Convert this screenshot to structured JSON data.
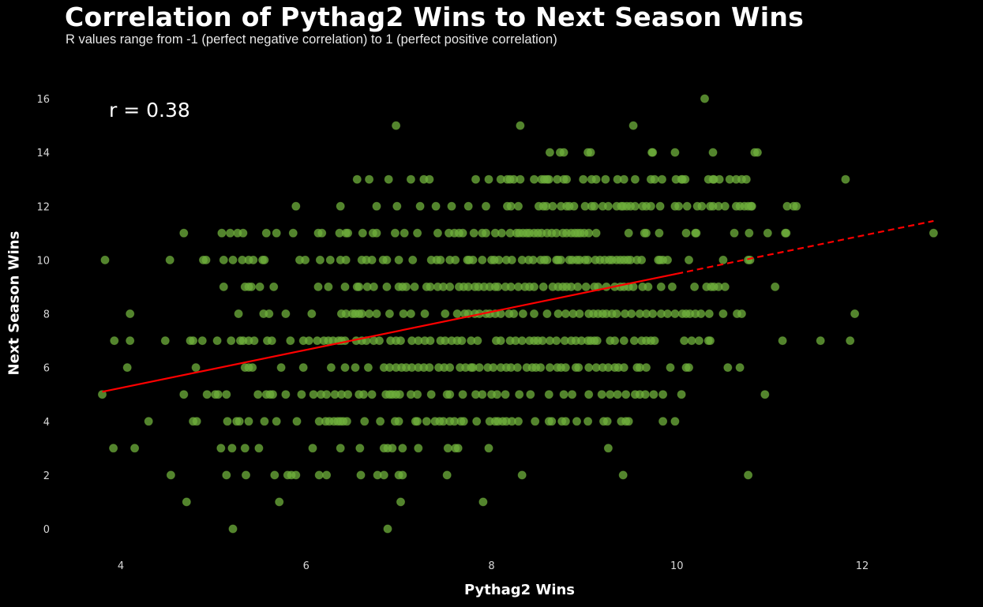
{
  "header": {
    "title": "Correlation of Pythag2 Wins to Next Season Wins",
    "subtitle": "R values range from -1 (perfect negative correlation) to 1 (perfect positive correlation)"
  },
  "colors": {
    "background": "#000000",
    "point": "#6fb03c",
    "point_opacity": 0.75,
    "regression_line": "#ff0000",
    "text": "#ffffff",
    "tick_text": "#d8d8d8"
  },
  "chart_data": {
    "type": "scatter",
    "title": "Correlation of Pythag2 Wins to Next Season Wins",
    "subtitle": "R values range from -1 (perfect negative correlation) to 1 (perfect positive correlation)",
    "xlabel": "Pythag2 Wins",
    "ylabel": "Next Season Wins",
    "annotation": "r = 0.38",
    "r": 0.38,
    "xlim": [
      3.45,
      13.0
    ],
    "ylim": [
      -0.9,
      16.7
    ],
    "xticks": [
      4,
      6,
      8,
      10,
      12
    ],
    "yticks": [
      0,
      2,
      4,
      6,
      8,
      10,
      12,
      14,
      16
    ],
    "grid": false,
    "legend": null,
    "regression": {
      "x_start": 3.8,
      "y_start": 5.1,
      "x_end": 12.77,
      "y_end": 11.45,
      "solid_until_x": 10.0,
      "style_after": "dashed"
    },
    "rows": [
      {
        "y": 16,
        "x": [
          10.3
        ]
      },
      {
        "y": 15,
        "x": [
          6.97,
          8.31,
          9.53
        ]
      },
      {
        "y": 14,
        "x": [
          8.63,
          8.74,
          8.78,
          9.04,
          9.07,
          9.73,
          9.74,
          9.98,
          10.39,
          10.84,
          10.87
        ]
      },
      {
        "y": 13,
        "x": [
          6.55,
          6.68,
          6.89,
          7.13,
          7.27,
          7.33,
          7.83,
          7.97,
          8.1,
          8.17,
          8.2,
          8.24,
          8.31,
          8.46,
          8.54,
          8.57,
          8.6,
          8.62,
          8.71,
          8.78,
          8.81,
          8.99,
          9.08,
          9.13,
          9.23,
          9.36,
          9.43,
          9.55,
          9.72,
          9.76,
          9.84,
          9.99,
          10.05,
          10.06,
          10.09,
          10.34,
          10.39,
          10.4,
          10.46,
          10.57,
          10.64,
          10.7,
          10.75,
          11.82
        ]
      },
      {
        "y": 12,
        "x": [
          5.89,
          6.37,
          6.76,
          6.98,
          7.23,
          7.4,
          7.57,
          7.75,
          7.94,
          8.17,
          8.21,
          8.29,
          8.51,
          8.56,
          8.59,
          8.66,
          8.75,
          8.81,
          8.84,
          8.89,
          9.01,
          9.08,
          9.11,
          9.2,
          9.26,
          9.35,
          9.4,
          9.42,
          9.46,
          9.5,
          9.55,
          9.63,
          9.67,
          9.72,
          9.82,
          9.98,
          10.02,
          10.11,
          10.22,
          10.27,
          10.36,
          10.39,
          10.45,
          10.52,
          10.64,
          10.68,
          10.73,
          10.77,
          10.8,
          10.81,
          11.19,
          11.26,
          11.29
        ]
      },
      {
        "y": 11,
        "x": [
          4.68,
          5.09,
          5.18,
          5.26,
          5.32,
          5.57,
          5.68,
          5.86,
          6.13,
          6.17,
          6.36,
          6.43,
          6.45,
          6.61,
          6.72,
          6.76,
          6.96,
          7.06,
          7.2,
          7.42,
          7.54,
          7.6,
          7.65,
          7.69,
          7.81,
          7.9,
          7.94,
          8.04,
          8.11,
          8.2,
          8.27,
          8.3,
          8.34,
          8.38,
          8.41,
          8.46,
          8.5,
          8.54,
          8.6,
          8.65,
          8.7,
          8.77,
          8.81,
          8.86,
          8.9,
          8.93,
          8.96,
          9.0,
          9.05,
          9.13,
          9.48,
          9.65,
          9.67,
          9.81,
          10.1,
          10.21,
          10.2,
          10.62,
          10.78,
          10.98,
          11.17,
          11.18,
          12.77
        ]
      },
      {
        "y": 10,
        "x": [
          3.83,
          4.53,
          4.89,
          4.92,
          5.11,
          5.21,
          5.31,
          5.38,
          5.43,
          5.53,
          5.55,
          5.93,
          5.99,
          6.15,
          6.26,
          6.37,
          6.43,
          6.6,
          6.65,
          6.71,
          6.83,
          6.87,
          7.0,
          7.15,
          7.35,
          7.41,
          7.45,
          7.55,
          7.61,
          7.74,
          7.76,
          7.8,
          7.9,
          8.0,
          8.03,
          8.08,
          8.16,
          8.22,
          8.33,
          8.4,
          8.45,
          8.53,
          8.57,
          8.6,
          8.7,
          8.72,
          8.75,
          8.84,
          8.87,
          8.92,
          8.95,
          9.01,
          9.04,
          9.12,
          9.17,
          9.22,
          9.27,
          9.3,
          9.35,
          9.39,
          9.43,
          9.47,
          9.5,
          9.57,
          9.62,
          9.8,
          9.82,
          9.85,
          9.9,
          10.13,
          10.5,
          10.77,
          10.79
        ]
      },
      {
        "y": 9,
        "x": [
          5.11,
          5.34,
          5.38,
          5.41,
          5.5,
          5.65,
          6.13,
          6.24,
          6.42,
          6.55,
          6.57,
          6.66,
          6.73,
          6.87,
          7.0,
          7.04,
          7.08,
          7.17,
          7.3,
          7.34,
          7.42,
          7.48,
          7.55,
          7.65,
          7.7,
          7.75,
          7.82,
          7.86,
          7.92,
          7.98,
          8.04,
          8.07,
          8.15,
          8.21,
          8.29,
          8.36,
          8.41,
          8.46,
          8.56,
          8.66,
          8.72,
          8.77,
          8.81,
          8.86,
          8.93,
          9.02,
          9.11,
          9.15,
          9.24,
          9.33,
          9.39,
          9.43,
          9.48,
          9.53,
          9.63,
          9.69,
          9.83,
          9.95,
          10.19,
          10.32,
          10.37,
          10.4,
          10.45,
          10.52,
          11.06
        ]
      },
      {
        "y": 8,
        "x": [
          4.1,
          5.27,
          5.54,
          5.6,
          5.78,
          6.06,
          6.38,
          6.43,
          6.5,
          6.53,
          6.57,
          6.6,
          6.68,
          6.76,
          6.9,
          7.05,
          7.13,
          7.28,
          7.5,
          7.63,
          7.71,
          7.75,
          7.82,
          7.87,
          7.94,
          7.98,
          8.04,
          8.1,
          8.19,
          8.24,
          8.34,
          8.46,
          8.6,
          8.72,
          8.8,
          8.88,
          8.95,
          9.05,
          9.1,
          9.15,
          9.2,
          9.24,
          9.3,
          9.35,
          9.44,
          9.51,
          9.6,
          9.67,
          9.74,
          9.83,
          9.9,
          9.98,
          10.06,
          10.1,
          10.14,
          10.2,
          10.26,
          10.35,
          10.5,
          10.65,
          10.7,
          11.92
        ]
      },
      {
        "y": 7,
        "x": [
          3.93,
          4.1,
          4.48,
          4.75,
          4.78,
          4.88,
          5.04,
          5.19,
          5.29,
          5.32,
          5.38,
          5.44,
          5.58,
          5.63,
          5.83,
          5.97,
          6.03,
          6.12,
          6.19,
          6.24,
          6.29,
          6.35,
          6.38,
          6.42,
          6.54,
          6.6,
          6.65,
          6.73,
          6.79,
          6.91,
          6.97,
          7.02,
          7.14,
          7.21,
          7.28,
          7.34,
          7.45,
          7.5,
          7.57,
          7.63,
          7.68,
          7.78,
          7.85,
          8.05,
          8.1,
          8.2,
          8.26,
          8.33,
          8.41,
          8.46,
          8.5,
          8.55,
          8.63,
          8.7,
          8.79,
          8.86,
          8.91,
          8.97,
          9.04,
          9.07,
          9.11,
          9.14,
          9.28,
          9.33,
          9.43,
          9.54,
          9.62,
          9.67,
          9.72,
          9.76,
          10.08,
          10.16,
          10.24,
          10.34,
          10.36,
          11.14,
          11.55,
          11.87
        ]
      },
      {
        "y": 6,
        "x": [
          4.07,
          4.81,
          5.34,
          5.38,
          5.42,
          5.73,
          5.97,
          6.27,
          6.42,
          6.53,
          6.67,
          6.84,
          6.9,
          6.97,
          7.03,
          7.08,
          7.14,
          7.21,
          7.27,
          7.33,
          7.43,
          7.49,
          7.55,
          7.66,
          7.72,
          7.78,
          7.8,
          7.87,
          7.96,
          8.02,
          8.1,
          8.16,
          8.21,
          8.28,
          8.38,
          8.44,
          8.48,
          8.53,
          8.63,
          8.71,
          8.75,
          8.8,
          8.91,
          8.94,
          9.05,
          9.13,
          9.2,
          9.26,
          9.33,
          9.37,
          9.43,
          9.57,
          9.6,
          9.67,
          9.93,
          10.1,
          10.13,
          10.55,
          10.68
        ]
      },
      {
        "y": 5,
        "x": [
          3.8,
          4.68,
          4.93,
          5.02,
          5.05,
          5.14,
          5.48,
          5.57,
          5.61,
          5.64,
          5.78,
          5.95,
          6.08,
          6.16,
          6.22,
          6.31,
          6.38,
          6.45,
          6.57,
          6.62,
          6.71,
          6.86,
          6.9,
          6.93,
          6.97,
          7.01,
          7.13,
          7.2,
          7.35,
          7.52,
          7.55,
          7.69,
          7.83,
          7.9,
          8.0,
          8.06,
          8.15,
          8.3,
          8.42,
          8.62,
          8.78,
          8.87,
          9.05,
          9.19,
          9.28,
          9.36,
          9.45,
          9.55,
          9.6,
          9.66,
          9.75,
          9.85,
          10.05,
          10.95
        ]
      },
      {
        "y": 4,
        "x": [
          4.3,
          4.78,
          4.82,
          5.15,
          5.25,
          5.28,
          5.38,
          5.55,
          5.68,
          5.9,
          6.14,
          6.21,
          6.25,
          6.3,
          6.34,
          6.37,
          6.4,
          6.44,
          6.63,
          6.8,
          6.96,
          7.0,
          7.18,
          7.2,
          7.3,
          7.39,
          7.44,
          7.48,
          7.55,
          7.6,
          7.67,
          7.7,
          7.84,
          7.98,
          8.04,
          8.07,
          8.12,
          8.16,
          8.22,
          8.29,
          8.47,
          8.62,
          8.65,
          8.76,
          8.8,
          8.92,
          9.04,
          9.21,
          9.25,
          9.4,
          9.45,
          9.48,
          9.85,
          9.98
        ]
      },
      {
        "y": 3,
        "x": [
          3.92,
          4.15,
          5.08,
          5.2,
          5.34,
          5.49,
          6.07,
          6.37,
          6.58,
          6.84,
          6.88,
          6.93,
          7.04,
          7.21,
          7.53,
          7.61,
          7.64,
          7.97,
          9.26
        ]
      },
      {
        "y": 2,
        "x": [
          4.54,
          5.14,
          5.35,
          5.66,
          5.8,
          5.84,
          5.89,
          6.14,
          6.22,
          6.59,
          6.77,
          6.84,
          7.0,
          7.04,
          7.52,
          8.33,
          9.42,
          10.77
        ]
      },
      {
        "y": 1,
        "x": [
          4.71,
          5.71,
          7.02,
          7.91
        ]
      },
      {
        "y": 0,
        "x": [
          5.21,
          6.88
        ]
      }
    ]
  }
}
